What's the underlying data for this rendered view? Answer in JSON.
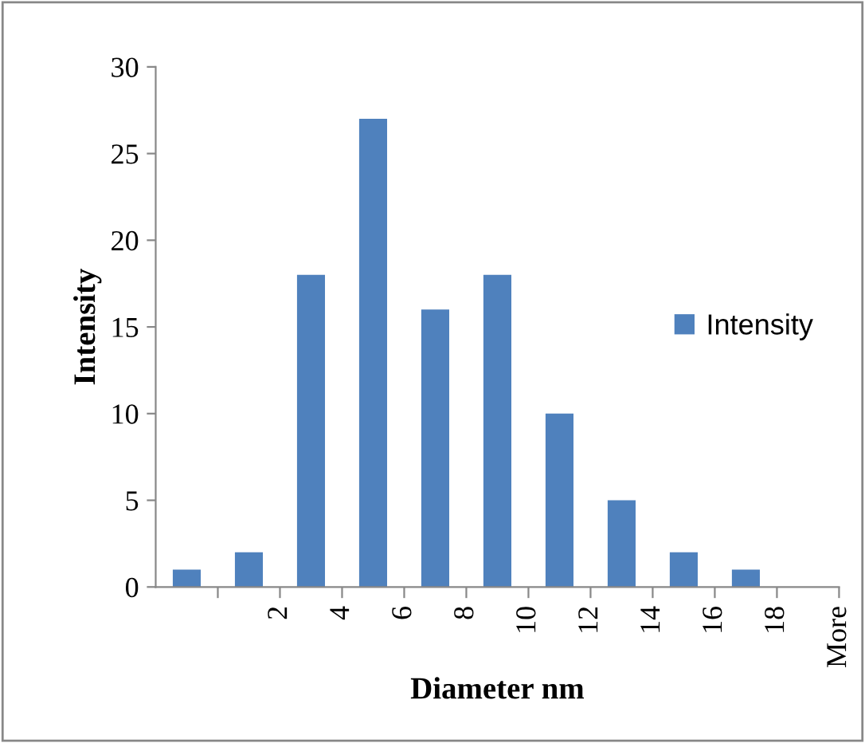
{
  "chart_data": {
    "type": "bar",
    "xlabel": "Diameter nm",
    "ylabel": "Intensity",
    "categories": [
      null,
      "2",
      "4",
      "6",
      "8",
      "10",
      "12",
      "14",
      "16",
      "18",
      "More"
    ],
    "series": [
      {
        "name": "Intensity",
        "color": "#4f81bd",
        "values": [
          1,
          2,
          18,
          27,
          16,
          18,
          10,
          5,
          2,
          1,
          0
        ]
      }
    ],
    "ylim": [
      0,
      30
    ],
    "yticks": [
      0,
      5,
      10,
      15,
      20,
      25,
      30
    ],
    "legend": "right"
  }
}
